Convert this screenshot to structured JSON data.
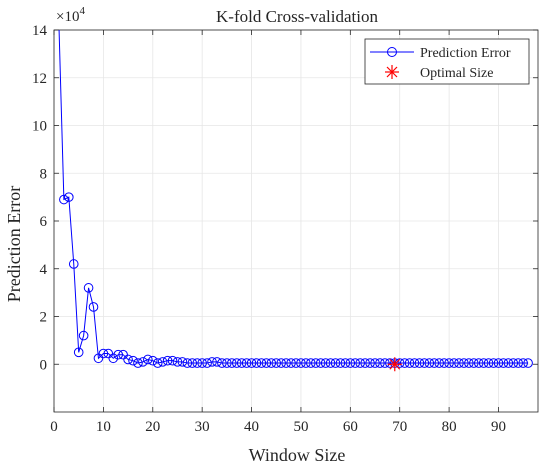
{
  "chart_data": {
    "type": "line",
    "title": "K-fold Cross-validation",
    "xlabel": "Window Size",
    "ylabel": "Prediction Error",
    "y_scale_label": "×10",
    "y_scale_exponent": "4",
    "xlim": [
      0,
      98
    ],
    "ylim": [
      -2,
      14
    ],
    "x_ticks": [
      0,
      10,
      20,
      30,
      40,
      50,
      60,
      70,
      80,
      90
    ],
    "y_ticks": [
      0,
      2,
      4,
      6,
      8,
      10,
      12,
      14
    ],
    "grid": true,
    "legend_position": "top-right",
    "series": [
      {
        "name": "Prediction Error",
        "color": "#0000ff",
        "marker": "circle",
        "x": [
          1,
          2,
          3,
          4,
          5,
          6,
          7,
          8,
          9,
          10,
          11,
          12,
          13,
          14,
          15,
          16,
          17,
          18,
          19,
          20,
          21,
          22,
          23,
          24,
          25,
          26,
          27,
          28,
          29,
          30,
          31,
          32,
          33,
          34,
          35,
          36,
          37,
          38,
          39,
          40,
          41,
          42,
          43,
          44,
          45,
          46,
          47,
          48,
          49,
          50,
          51,
          52,
          53,
          54,
          55,
          56,
          57,
          58,
          59,
          60,
          61,
          62,
          63,
          64,
          65,
          66,
          67,
          68,
          69,
          70,
          71,
          72,
          73,
          74,
          75,
          76,
          77,
          78,
          79,
          80,
          81,
          82,
          83,
          84,
          85,
          86,
          87,
          88,
          89,
          90,
          91,
          92,
          93,
          94,
          95,
          96
        ],
        "values": [
          14.2,
          6.9,
          7.0,
          4.2,
          0.5,
          1.2,
          3.2,
          2.4,
          0.25,
          0.45,
          0.45,
          0.25,
          0.4,
          0.4,
          0.2,
          0.15,
          0.05,
          0.1,
          0.2,
          0.15,
          0.05,
          0.1,
          0.15,
          0.15,
          0.1,
          0.1,
          0.05,
          0.05,
          0.05,
          0.05,
          0.05,
          0.1,
          0.1,
          0.05,
          0.05,
          0.05,
          0.05,
          0.05,
          0.05,
          0.05,
          0.05,
          0.05,
          0.05,
          0.05,
          0.05,
          0.05,
          0.05,
          0.05,
          0.05,
          0.05,
          0.05,
          0.05,
          0.05,
          0.05,
          0.05,
          0.05,
          0.05,
          0.05,
          0.05,
          0.05,
          0.05,
          0.05,
          0.05,
          0.05,
          0.05,
          0.05,
          0.05,
          0.05,
          0.05,
          0.05,
          0.05,
          0.05,
          0.05,
          0.05,
          0.05,
          0.05,
          0.05,
          0.05,
          0.05,
          0.05,
          0.05,
          0.05,
          0.05,
          0.05,
          0.05,
          0.05,
          0.05,
          0.05,
          0.05,
          0.05,
          0.05,
          0.05,
          0.05,
          0.05,
          0.05,
          0.05
        ]
      },
      {
        "name": "Optimal Size",
        "color": "#ff0000",
        "marker": "asterisk",
        "x": [
          69
        ],
        "values": [
          0.0
        ]
      }
    ]
  }
}
